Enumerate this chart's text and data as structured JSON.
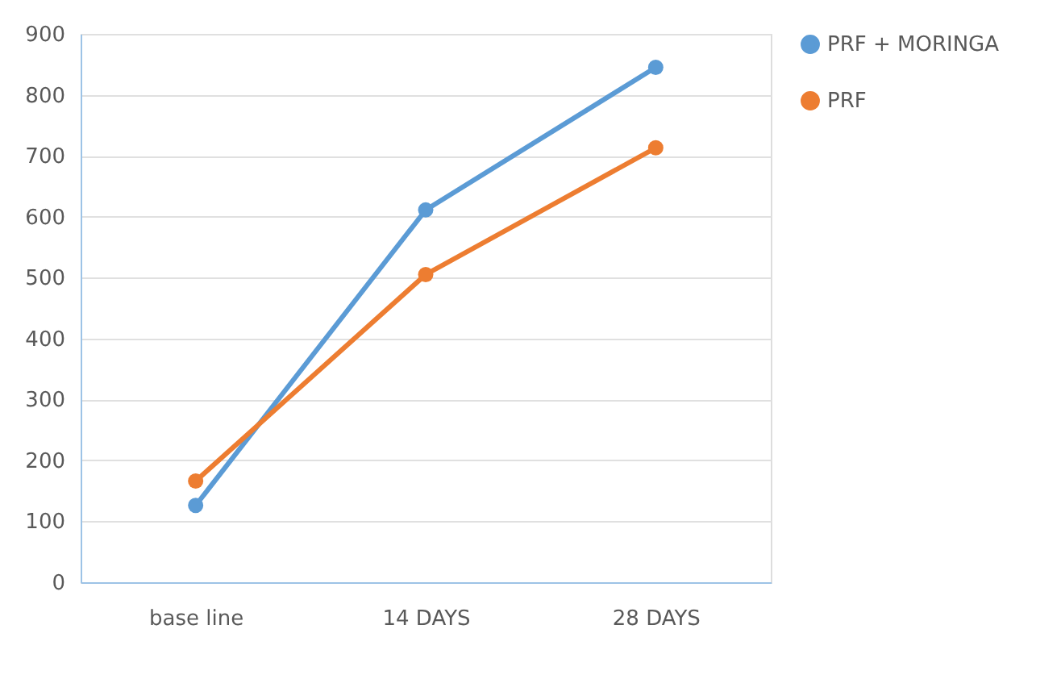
{
  "chart_data": {
    "type": "line",
    "categories": [
      "base line",
      "14 DAYS",
      "28 DAYS"
    ],
    "series": [
      {
        "name": "PRF + MORINGA",
        "color": "#5b9bd5",
        "values": [
          126,
          611,
          845
        ]
      },
      {
        "name": "PRF",
        "color": "#ed7d31",
        "values": [
          166,
          505,
          713
        ]
      }
    ],
    "ylim": [
      0,
      900
    ],
    "yticks": [
      0,
      100,
      200,
      300,
      400,
      500,
      600,
      700,
      800,
      900
    ],
    "grid": "y",
    "legend": "right",
    "marker": "circle",
    "line_style": "solid"
  }
}
